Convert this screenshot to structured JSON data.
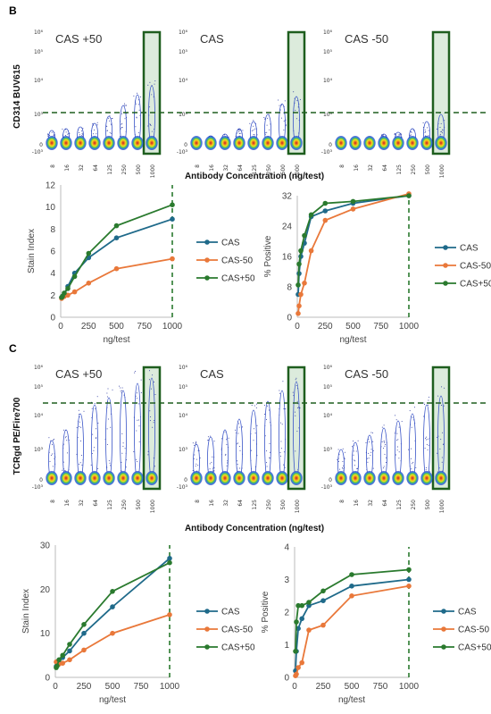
{
  "panel_b": {
    "letter": "B",
    "y_axis_label": "CD314 BUV615",
    "x_axis_label": "Antibody Concentration (ng/test)",
    "flow_titles": [
      "CAS +50",
      "CAS",
      "CAS -50"
    ],
    "flow_y_ticks": [
      "10⁶",
      "10⁵",
      "10⁴",
      "10³",
      "0",
      "-10³"
    ],
    "conc_labels": [
      "8",
      "16",
      "32",
      "64",
      "125",
      "250",
      "500",
      "1000"
    ]
  },
  "panel_c": {
    "letter": "C",
    "y_axis_label": "TCRgd PE/Fire700",
    "x_axis_label": "Antibody Concentration (ng/test)",
    "flow_titles": [
      "CAS +50",
      "CAS",
      "CAS -50"
    ],
    "flow_y_ticks": [
      "10⁶",
      "10⁵",
      "10⁴",
      "10³",
      "0",
      "-10³"
    ],
    "conc_labels": [
      "8",
      "16",
      "32",
      "64",
      "125",
      "250",
      "500",
      "1000"
    ]
  },
  "colors": {
    "CAS": "#1f6a8a",
    "CAS-50": "#e9783a",
    "CAS+50": "#2a7a2e",
    "gate": "#1e5e1e",
    "gate_fill": "#dcebdc"
  },
  "chart_data": [
    {
      "id": "b_stain",
      "type": "line",
      "xlabel": "ng/test",
      "ylabel": "Stain Index",
      "xlim": [
        0,
        1000
      ],
      "ylim": [
        0,
        12
      ],
      "xticks": [
        0,
        250,
        500,
        750,
        1000
      ],
      "yticks": [
        0,
        2,
        4,
        6,
        8,
        10,
        12
      ],
      "legend": "right",
      "x": [
        8,
        16,
        32,
        64,
        125,
        250,
        500,
        1000
      ],
      "series": [
        {
          "name": "CAS",
          "values": [
            1.8,
            1.9,
            2.1,
            2.8,
            4.0,
            5.4,
            7.2,
            8.9
          ]
        },
        {
          "name": "CAS-50",
          "values": [
            1.7,
            1.8,
            1.9,
            2.0,
            2.3,
            3.1,
            4.4,
            5.3
          ]
        },
        {
          "name": "CAS+50",
          "values": [
            1.8,
            1.9,
            2.2,
            2.6,
            3.7,
            5.8,
            8.3,
            10.2
          ]
        }
      ]
    },
    {
      "id": "b_pos",
      "type": "line",
      "xlabel": "ng/test",
      "ylabel": "% Positive",
      "xlim": [
        0,
        1000
      ],
      "ylim": [
        0,
        32
      ],
      "xticks": [
        0,
        250,
        500,
        750,
        1000
      ],
      "yticks": [
        0,
        8,
        16,
        24,
        32
      ],
      "legend": "right",
      "x": [
        8,
        16,
        32,
        64,
        125,
        250,
        500,
        1000
      ],
      "series": [
        {
          "name": "CAS",
          "values": [
            6.0,
            11.5,
            16.0,
            19.5,
            26.5,
            28.0,
            30.0,
            32.0
          ]
        },
        {
          "name": "CAS-50",
          "values": [
            1.0,
            3.0,
            6.0,
            9.0,
            17.5,
            25.5,
            28.5,
            32.5
          ]
        },
        {
          "name": "CAS+50",
          "values": [
            8.5,
            14.0,
            17.5,
            21.5,
            27.0,
            30.0,
            30.5,
            32.0
          ]
        }
      ]
    },
    {
      "id": "c_stain",
      "type": "line",
      "xlabel": "ng/test",
      "ylabel": "Stain Index",
      "xlim": [
        0,
        1000
      ],
      "ylim": [
        0,
        30
      ],
      "xticks": [
        0,
        250,
        500,
        750,
        1000
      ],
      "yticks": [
        0,
        10,
        20,
        30
      ],
      "legend": "right",
      "x": [
        8,
        16,
        32,
        64,
        125,
        250,
        500,
        1000
      ],
      "series": [
        {
          "name": "CAS",
          "values": [
            2.5,
            2.8,
            3.5,
            4.5,
            6.0,
            10.0,
            16.0,
            27.0
          ]
        },
        {
          "name": "CAS-50",
          "values": [
            3.5,
            3.3,
            3.0,
            3.2,
            4.0,
            6.2,
            10.0,
            14.2
          ]
        },
        {
          "name": "CAS+50",
          "values": [
            2.2,
            2.6,
            4.0,
            5.0,
            7.5,
            12.0,
            19.5,
            26.0
          ]
        }
      ]
    },
    {
      "id": "c_pos",
      "type": "line",
      "xlabel": "ng/test",
      "ylabel": "% Positive",
      "xlim": [
        0,
        1000
      ],
      "ylim": [
        0,
        4
      ],
      "xticks": [
        0,
        250,
        500,
        750,
        1000
      ],
      "yticks": [
        0,
        1,
        2,
        3,
        4
      ],
      "legend": "right",
      "x": [
        8,
        16,
        32,
        64,
        125,
        250,
        500,
        1000
      ],
      "series": [
        {
          "name": "CAS",
          "values": [
            0.2,
            0.8,
            1.5,
            1.8,
            2.2,
            2.35,
            2.8,
            3.0
          ]
        },
        {
          "name": "CAS-50",
          "values": [
            0.05,
            0.1,
            0.3,
            0.45,
            1.45,
            1.6,
            2.5,
            2.8
          ]
        },
        {
          "name": "CAS+50",
          "values": [
            0.8,
            1.7,
            2.2,
            2.2,
            2.3,
            2.65,
            3.15,
            3.3
          ]
        }
      ]
    }
  ]
}
